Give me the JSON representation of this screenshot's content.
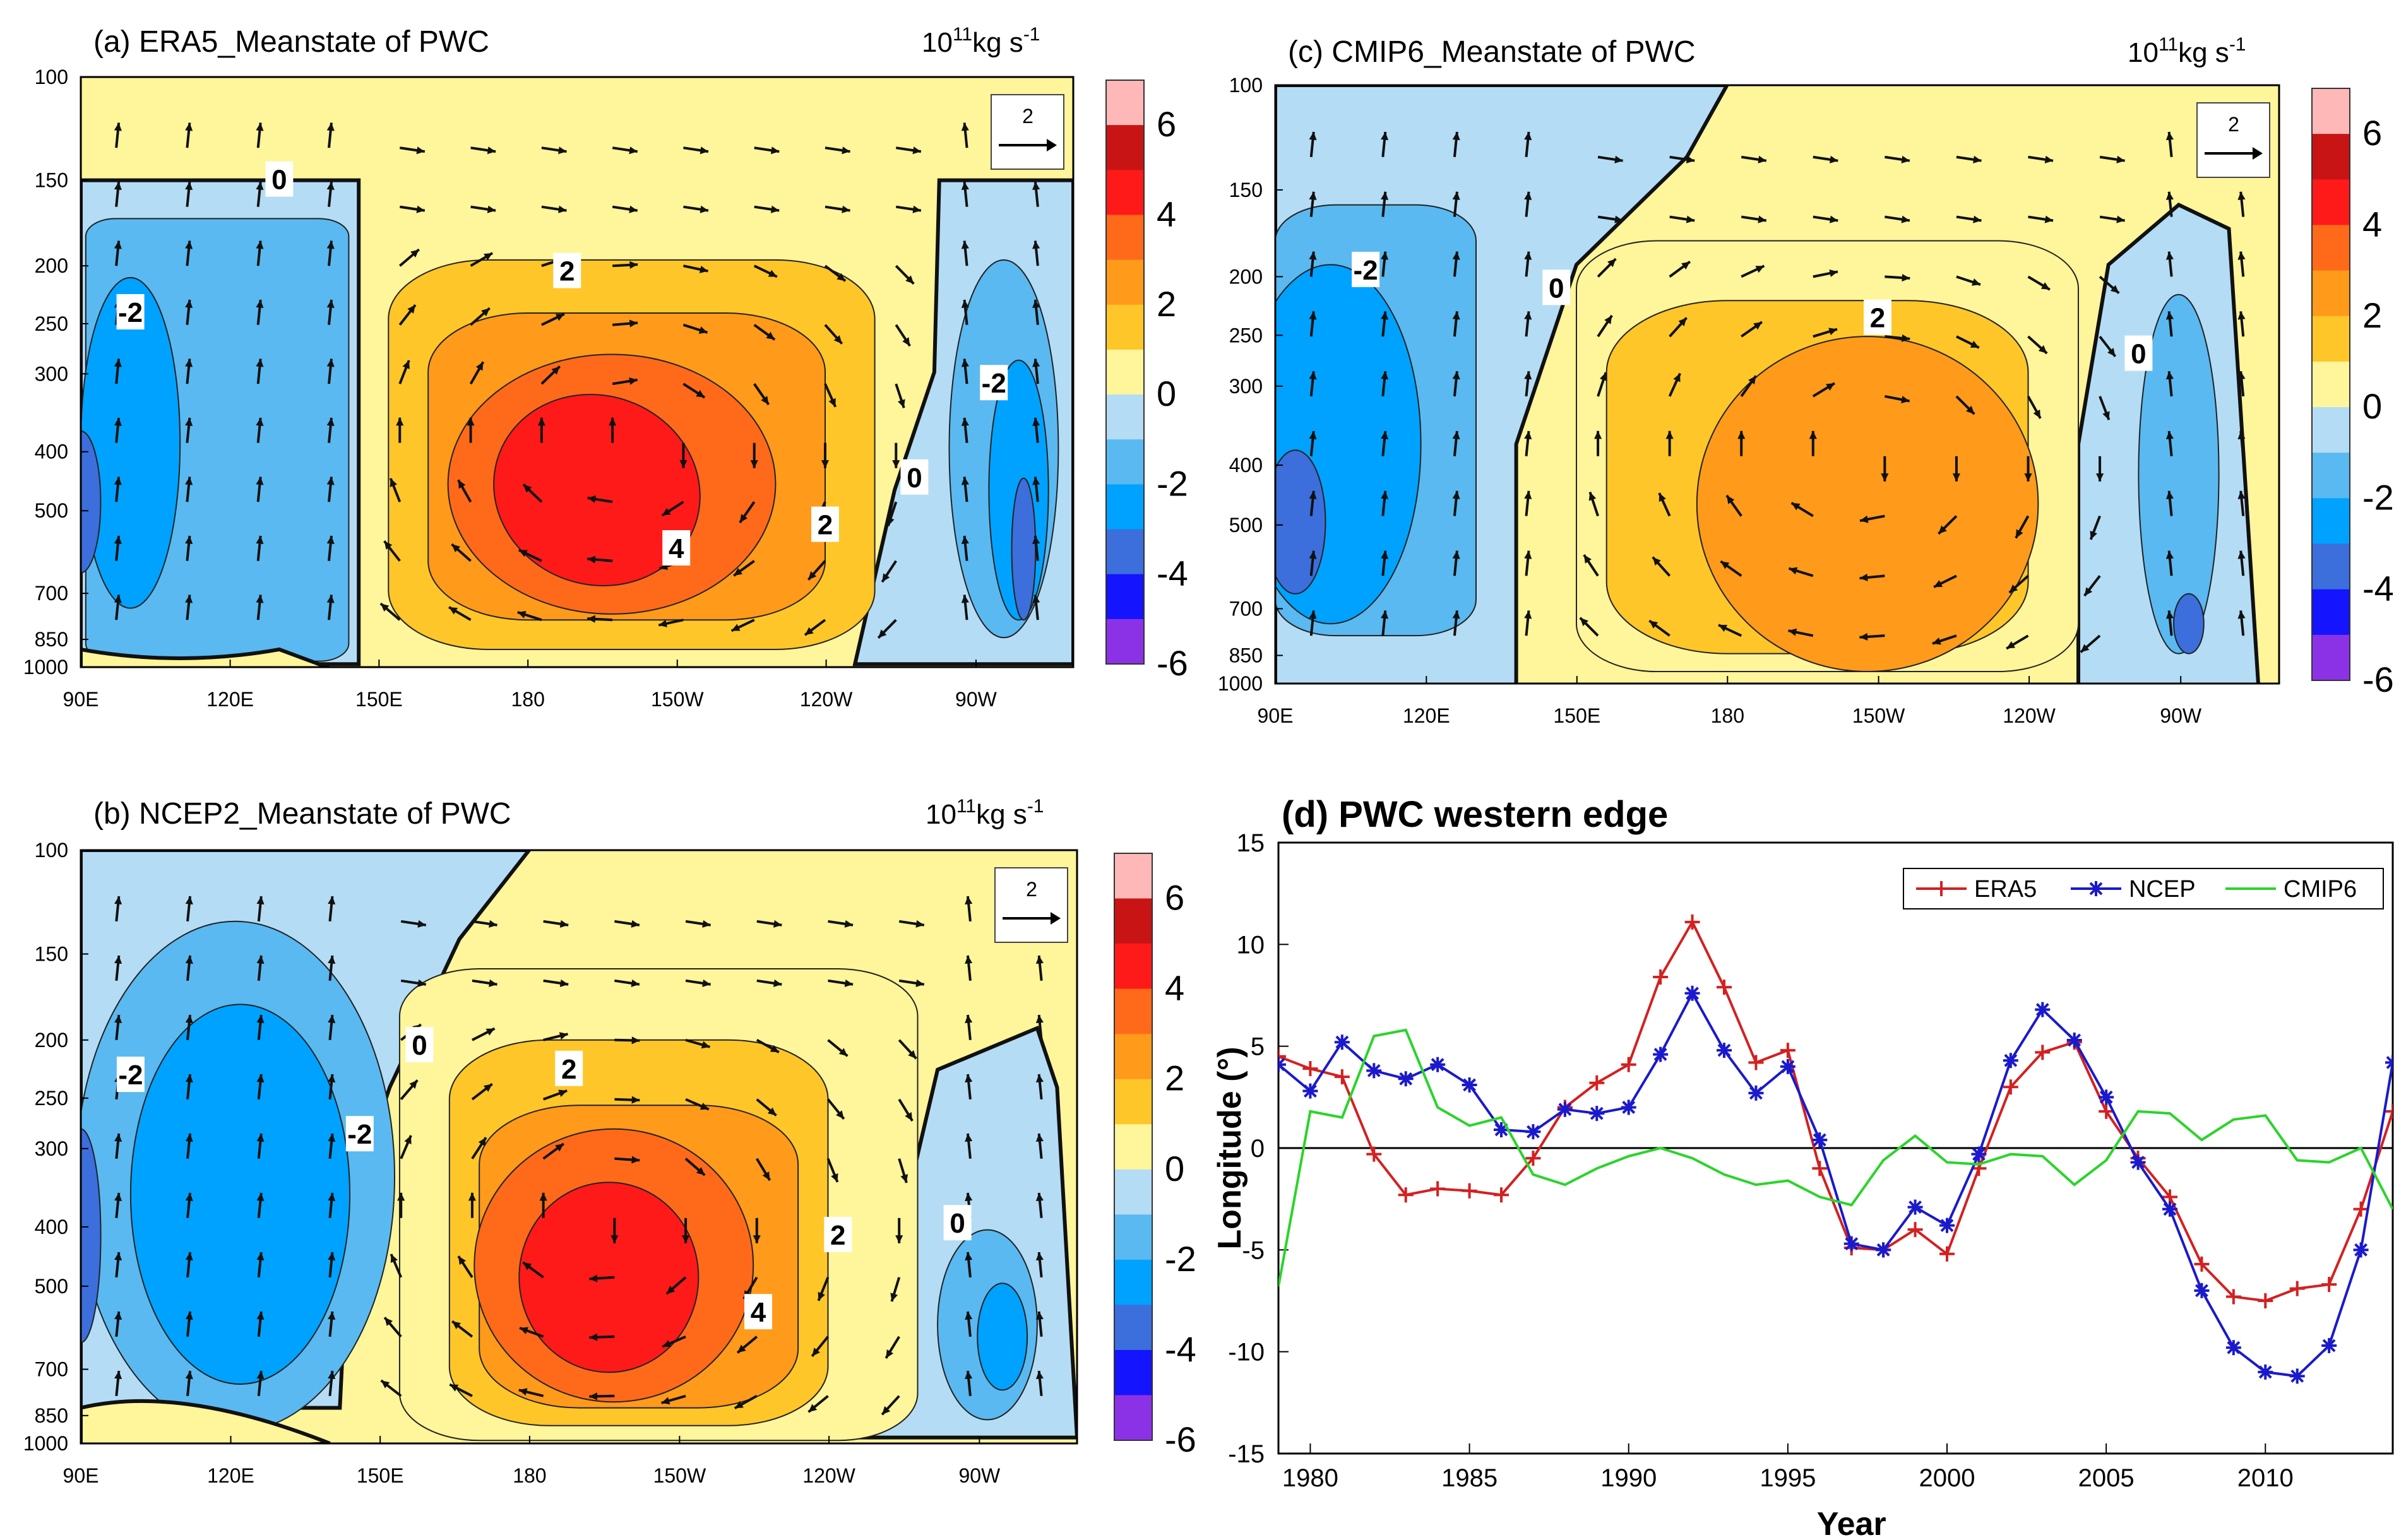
{
  "colors": {
    "level_colors": [
      "#ffb8b8",
      "#c81414",
      "#ff1a1a",
      "#ff6a1a",
      "#ff9a1a",
      "#ffc62a",
      "#fff59a",
      "#b4dcf5",
      "#5ab9f0",
      "#00a2ff",
      "#3c6edc",
      "#1414ff",
      "#8c32e6"
    ],
    "era5": "#d42020",
    "ncep": "#1a1acc",
    "cmip6": "#2ad42a",
    "arrow": "#111111"
  },
  "panels": [
    {
      "id": "a",
      "title": "(a) ERA5_Meanstate of PWC",
      "units_base": "10",
      "units_exp": "11",
      "units_rest": "kg s",
      "units_exp2": "-1",
      "ref_arrow_label": "2",
      "y_ticks": [
        "100",
        "150",
        "200",
        "250",
        "300",
        "400",
        "500",
        "700",
        "850",
        "1000"
      ],
      "x_ticks": [
        "90E",
        "120E",
        "150E",
        "180",
        "150W",
        "120W",
        "90W"
      ],
      "colorbar_labels": [
        "6",
        "4",
        "2",
        "0",
        "-2",
        "-4",
        "-6"
      ],
      "contour_labels": [
        "0",
        "-2",
        "2",
        "4",
        "2",
        "0",
        "-2"
      ]
    },
    {
      "id": "b",
      "title": "(b) NCEP2_Meanstate of PWC",
      "units_base": "10",
      "units_exp": "11",
      "units_rest": "kg s",
      "units_exp2": "-1",
      "ref_arrow_label": "2",
      "y_ticks": [
        "100",
        "150",
        "200",
        "250",
        "300",
        "400",
        "500",
        "700",
        "850",
        "1000"
      ],
      "x_ticks": [
        "90E",
        "120E",
        "150E",
        "180",
        "150W",
        "120W",
        "90W"
      ],
      "colorbar_labels": [
        "6",
        "4",
        "2",
        "0",
        "-2",
        "-4",
        "-6"
      ],
      "contour_labels": [
        "-2",
        "-2",
        "0",
        "2",
        "2",
        "4",
        "0"
      ]
    },
    {
      "id": "c",
      "title": "(c) CMIP6_Meanstate of PWC",
      "units_base": "10",
      "units_exp": "11",
      "units_rest": "kg s",
      "units_exp2": "-1",
      "ref_arrow_label": "2",
      "y_ticks": [
        "100",
        "150",
        "200",
        "250",
        "300",
        "400",
        "500",
        "700",
        "850",
        "1000"
      ],
      "x_ticks": [
        "90E",
        "120E",
        "150E",
        "180",
        "150W",
        "120W",
        "90W"
      ],
      "colorbar_labels": [
        "6",
        "4",
        "2",
        "0",
        "-2",
        "-4",
        "-6"
      ],
      "contour_labels": [
        "-2",
        "0",
        "2",
        "0"
      ]
    }
  ],
  "chart_data": {
    "type": "line",
    "title": "(d) PWC western edge",
    "xlabel": "Year",
    "ylabel": "Longitude (°)",
    "xlim": [
      1979,
      2014
    ],
    "ylim": [
      -15,
      15
    ],
    "x_ticks": [
      1980,
      1985,
      1990,
      1995,
      2000,
      2005,
      2010
    ],
    "y_ticks": [
      15,
      10,
      5,
      0,
      -5,
      -10,
      -15
    ],
    "legend_position": "top-right",
    "x": [
      1979,
      1980,
      1981,
      1982,
      1983,
      1984,
      1985,
      1986,
      1987,
      1988,
      1989,
      1990,
      1991,
      1992,
      1993,
      1994,
      1995,
      1996,
      1997,
      1998,
      1999,
      2000,
      2001,
      2002,
      2003,
      2004,
      2005,
      2006,
      2007,
      2008,
      2009,
      2010,
      2011,
      2012,
      2013,
      2014
    ],
    "series": [
      {
        "name": "ERA5",
        "marker": "+",
        "values": [
          4.5,
          3.9,
          3.5,
          -0.3,
          -2.3,
          -2.0,
          -2.1,
          -2.3,
          -0.5,
          2.0,
          3.2,
          4.1,
          8.4,
          11.1,
          7.9,
          4.2,
          4.8,
          -1.0,
          -4.9,
          -5.0,
          -4.0,
          -5.2,
          -1.0,
          3.0,
          4.7,
          5.2,
          1.8,
          -0.5,
          -2.4,
          -5.7,
          -7.3,
          -7.5,
          -6.9,
          -6.7,
          -3.0,
          1.8
        ]
      },
      {
        "name": "NCEP",
        "marker": "*",
        "values": [
          4.1,
          2.8,
          5.2,
          3.8,
          3.4,
          4.1,
          3.1,
          0.9,
          0.8,
          1.9,
          1.7,
          2.0,
          4.6,
          7.6,
          4.8,
          2.7,
          4.0,
          0.4,
          -4.7,
          -5.0,
          -2.9,
          -3.8,
          -0.3,
          4.3,
          6.8,
          5.3,
          2.5,
          -0.7,
          -3.0,
          -7.0,
          -9.8,
          -11.0,
          -11.2,
          -9.7,
          -5.0,
          4.2
        ]
      },
      {
        "name": "CMIP6",
        "marker": "none",
        "values": [
          -6.8,
          1.8,
          1.5,
          5.5,
          5.8,
          2.0,
          1.1,
          1.5,
          -1.3,
          -1.8,
          -1.0,
          -0.4,
          0.0,
          -0.5,
          -1.3,
          -1.8,
          -1.6,
          -2.4,
          -2.8,
          -0.6,
          0.6,
          -0.7,
          -0.8,
          -0.3,
          -0.4,
          -1.8,
          -0.6,
          1.8,
          1.7,
          0.4,
          1.4,
          1.6,
          -0.6,
          -0.7,
          0.0,
          -3.0
        ]
      }
    ]
  }
}
